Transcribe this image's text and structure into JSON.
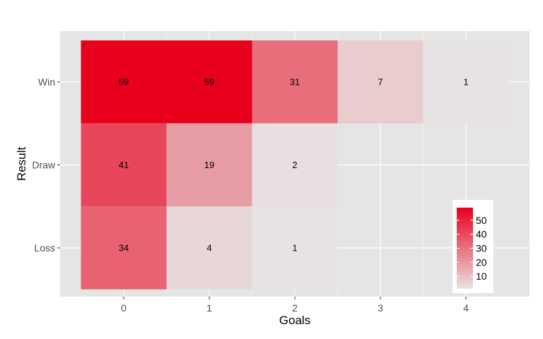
{
  "chart_data": {
    "type": "heatmap",
    "title": "",
    "xlabel": "Goals",
    "ylabel": "Result",
    "x_categories": [
      "0",
      "1",
      "2",
      "3",
      "4"
    ],
    "y_categories": [
      "Win",
      "Draw",
      "Loss"
    ],
    "cells": [
      {
        "x": "0",
        "y": "Win",
        "value": 59
      },
      {
        "x": "1",
        "y": "Win",
        "value": 59
      },
      {
        "x": "2",
        "y": "Win",
        "value": 31
      },
      {
        "x": "3",
        "y": "Win",
        "value": 7
      },
      {
        "x": "4",
        "y": "Win",
        "value": 1
      },
      {
        "x": "0",
        "y": "Draw",
        "value": 41
      },
      {
        "x": "1",
        "y": "Draw",
        "value": 19
      },
      {
        "x": "2",
        "y": "Draw",
        "value": 2
      },
      {
        "x": "0",
        "y": "Loss",
        "value": 34
      },
      {
        "x": "1",
        "y": "Loss",
        "value": 4
      },
      {
        "x": "2",
        "y": "Loss",
        "value": 1
      }
    ],
    "color_scale": {
      "low": "#e8e3e3",
      "high": "#e8001c",
      "min": 1,
      "max": 59
    },
    "legend": {
      "position": "bottom-right",
      "ticks": [
        10,
        20,
        30,
        40,
        50
      ]
    },
    "grid": true,
    "panel_background": "#e5e5e5"
  }
}
